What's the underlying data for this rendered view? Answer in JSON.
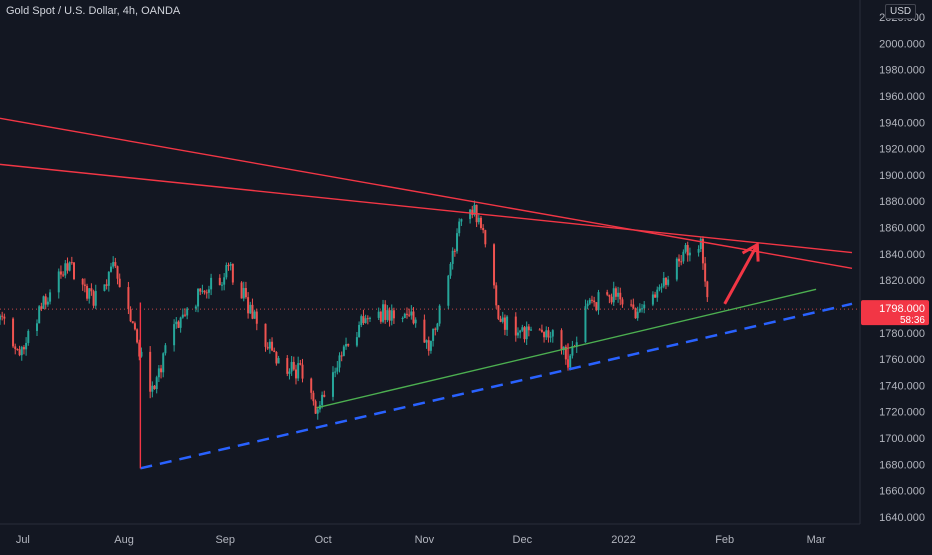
{
  "header": {
    "title": "Gold Spot / U.S. Dollar, 4h, OANDA",
    "currency": "USD"
  },
  "colors": {
    "background": "#131722",
    "grid": "#1f2430",
    "up": "#26a69a",
    "down": "#ef5350",
    "resistance": "#f23645",
    "support": "#4caf50",
    "projection": "#2962ff",
    "arrow": "#f23645",
    "axis_text": "#b2b5be",
    "price_label_bg": "#f23645"
  },
  "chart_data": {
    "type": "candlestick",
    "title": "Gold Spot / U.S. Dollar, 4h, OANDA",
    "ylim": [
      1630,
      2030
    ],
    "y_ticks": [
      1640,
      1660,
      1680,
      1700,
      1720,
      1740,
      1760,
      1780,
      1800,
      1820,
      1840,
      1860,
      1880,
      1900,
      1920,
      1940,
      1960,
      1980,
      2000,
      2020
    ],
    "y_tick_labels": [
      "1640.000",
      "1660.000",
      "1680.000",
      "1700.000",
      "1720.000",
      "1740.000",
      "1760.000",
      "1780.000",
      "1800.000",
      "1820.000",
      "1840.000",
      "1860.000",
      "1880.000",
      "1900.000",
      "1920.000",
      "1940.000",
      "1960.000",
      "1980.000",
      "2000.000",
      "2020.000"
    ],
    "x_ticks": [
      "Jul",
      "Aug",
      "Sep",
      "Oct",
      "Nov",
      "Dec",
      "2022",
      "Feb",
      "Mar"
    ],
    "xlim": [
      "2021-06-24",
      "2022-03-12"
    ],
    "x_tick_dates": [
      "2021-07-01",
      "2021-08-01",
      "2021-09-01",
      "2021-10-01",
      "2021-11-01",
      "2021-12-01",
      "2022-01-01",
      "2022-02-01",
      "2022-03-01"
    ],
    "price_path": [
      [
        "2021-06-24",
        1790
      ],
      [
        "2021-06-30",
        1763
      ],
      [
        "2021-07-08",
        1808
      ],
      [
        "2021-07-15",
        1830
      ],
      [
        "2021-07-22",
        1805
      ],
      [
        "2021-07-29",
        1830
      ],
      [
        "2021-08-06",
        1764
      ],
      [
        "2021-08-09",
        1730
      ],
      [
        "2021-08-16",
        1785
      ],
      [
        "2021-08-23",
        1805
      ],
      [
        "2021-08-27",
        1818
      ],
      [
        "2021-09-03",
        1827
      ],
      [
        "2021-09-10",
        1790
      ],
      [
        "2021-09-17",
        1755
      ],
      [
        "2021-09-24",
        1750
      ],
      [
        "2021-09-29",
        1723
      ],
      [
        "2021-10-06",
        1760
      ],
      [
        "2021-10-14",
        1795
      ],
      [
        "2021-10-22",
        1795
      ],
      [
        "2021-10-28",
        1790
      ],
      [
        "2021-11-03",
        1770
      ],
      [
        "2021-11-08",
        1825
      ],
      [
        "2021-11-12",
        1865
      ],
      [
        "2021-11-16",
        1875
      ],
      [
        "2021-11-19",
        1852
      ],
      [
        "2021-11-24",
        1790
      ],
      [
        "2021-12-01",
        1780
      ],
      [
        "2021-12-06",
        1785
      ],
      [
        "2021-12-10",
        1780
      ],
      [
        "2021-12-15",
        1760
      ],
      [
        "2021-12-20",
        1795
      ],
      [
        "2021-12-27",
        1810
      ],
      [
        "2022-01-03",
        1800
      ],
      [
        "2022-01-07",
        1795
      ],
      [
        "2022-01-14",
        1820
      ],
      [
        "2022-01-19",
        1842
      ],
      [
        "2022-01-25",
        1848
      ],
      [
        "2022-01-27",
        1798
      ]
    ],
    "last_price": "1798.000",
    "countdown": "58:36",
    "last_price_dotted_line": true,
    "grid": false,
    "annotations": [
      {
        "kind": "resistance-line",
        "color": "#f23645",
        "points": [
          [
            "2021-06-24",
            1943
          ],
          [
            "2022-03-12",
            1829
          ]
        ]
      },
      {
        "kind": "resistance-line",
        "color": "#f23645",
        "points": [
          [
            "2021-06-24",
            1908
          ],
          [
            "2022-03-12",
            1841
          ]
        ]
      },
      {
        "kind": "support-line",
        "color": "#4caf50",
        "points": [
          [
            "2021-09-29",
            1723
          ],
          [
            "2022-03-01",
            1813
          ]
        ]
      },
      {
        "kind": "projection-dashed-line",
        "color": "#2962ff",
        "points": [
          [
            "2021-08-06",
            1677
          ],
          [
            "2022-03-12",
            1802
          ]
        ]
      },
      {
        "kind": "vertical-drop-line",
        "color": "#f23645",
        "points": [
          [
            "2021-08-06",
            1803
          ],
          [
            "2021-08-06",
            1677
          ]
        ]
      },
      {
        "kind": "vertical-drop-line",
        "color": "#f23645",
        "points": [
          [
            "2021-12-15",
            1772
          ],
          [
            "2021-12-15",
            1753
          ]
        ]
      },
      {
        "kind": "arrow-up",
        "color": "#f23645",
        "points": [
          [
            "2022-02-01",
            1802
          ],
          [
            "2022-02-11",
            1847
          ]
        ]
      }
    ]
  }
}
